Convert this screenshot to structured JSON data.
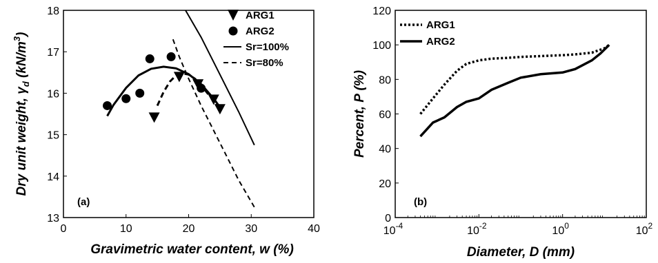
{
  "chart_data": [
    {
      "type": "scatter",
      "panel_label": "(a)",
      "xlabel": "Gravimetric water content, w (%)",
      "ylabel_main": "Dry unit weight, γ",
      "ylabel_sub": "d",
      "ylabel_unit": " (kN/m",
      "ylabel_sup": "3",
      "ylabel_close": ")",
      "xlim": [
        0,
        40
      ],
      "ylim": [
        13,
        18
      ],
      "xticks": [
        "0",
        "10",
        "20",
        "30",
        "40"
      ],
      "yticks": [
        "13",
        "14",
        "15",
        "16",
        "17",
        "18"
      ],
      "legend_position": "top-right",
      "series": [
        {
          "name": "ARG1",
          "marker": "triangle-down",
          "x": [
            14.5,
            18.5,
            21.5,
            24,
            25
          ],
          "y": [
            15.42,
            16.4,
            16.22,
            15.85,
            15.62
          ]
        },
        {
          "name": "ARG2",
          "marker": "circle",
          "x": [
            7,
            10,
            12.2,
            13.8,
            17.2,
            22
          ],
          "y": [
            15.7,
            15.87,
            16.0,
            16.83,
            16.88,
            16.12
          ]
        },
        {
          "name": "Sr=100%",
          "style": "solid",
          "x": [
            19.5,
            22,
            25,
            28,
            30.5
          ],
          "y": [
            18.0,
            17.35,
            16.45,
            15.55,
            14.75
          ]
        },
        {
          "name": "Sr=80%",
          "style": "dashed",
          "x": [
            17.5,
            18.5,
            20,
            22,
            24,
            26,
            28,
            30.5
          ],
          "y": [
            17.3,
            16.88,
            16.35,
            15.7,
            15.1,
            14.5,
            13.9,
            13.25
          ]
        }
      ],
      "fit_curves": [
        {
          "marker_series": "ARG2",
          "style": "solid",
          "x": [
            7,
            8,
            10,
            12,
            14,
            16,
            18,
            20,
            22,
            24,
            25.2
          ],
          "y": [
            15.45,
            15.72,
            16.13,
            16.43,
            16.59,
            16.64,
            16.6,
            16.46,
            16.22,
            15.87,
            15.62
          ]
        },
        {
          "marker_series": "ARG1",
          "style": "dashed",
          "x": [
            15,
            16,
            17,
            18,
            19,
            20,
            21,
            22,
            23,
            24,
            25.2
          ],
          "y": [
            15.7,
            16.03,
            16.28,
            16.43,
            16.48,
            16.45,
            16.35,
            16.2,
            16.0,
            15.85,
            15.6
          ]
        }
      ]
    },
    {
      "type": "line",
      "panel_label": "(b)",
      "xlabel": "Diameter, D (mm)",
      "ylabel": "Percent, P (%)",
      "xscale": "log",
      "xlim_log10": [
        -4,
        2
      ],
      "ylim": [
        0,
        120
      ],
      "xticks": [
        {
          "base": "10",
          "exp": "-4"
        },
        {
          "base": "10",
          "exp": "-2"
        },
        {
          "base": "10",
          "exp": "0"
        },
        {
          "base": "10",
          "exp": "2"
        }
      ],
      "yticks": [
        "0",
        "20",
        "40",
        "60",
        "80",
        "100",
        "120"
      ],
      "legend_position": "top-left",
      "series": [
        {
          "name": "ARG1",
          "style": "dotted",
          "x": [
            0.0004,
            0.0008,
            0.0015,
            0.003,
            0.005,
            0.01,
            0.02,
            0.05,
            0.1,
            0.3,
            1,
            2,
            5,
            10,
            13
          ],
          "y": [
            60,
            69,
            77,
            85,
            89,
            91,
            92,
            92.5,
            93,
            93.5,
            94,
            94.5,
            95.5,
            98,
            100
          ]
        },
        {
          "name": "ARG2",
          "style": "solid",
          "x": [
            0.0004,
            0.0008,
            0.0015,
            0.003,
            0.005,
            0.01,
            0.02,
            0.05,
            0.1,
            0.3,
            1,
            2,
            5,
            8,
            13
          ],
          "y": [
            47,
            55,
            58,
            64,
            67,
            69,
            74,
            78,
            81,
            83,
            84,
            86,
            91,
            95,
            100
          ]
        }
      ]
    }
  ]
}
